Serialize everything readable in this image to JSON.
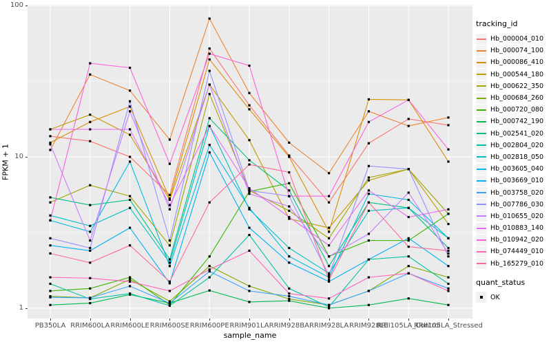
{
  "axes": {
    "x": {
      "title": "sample_name",
      "categories": [
        "PB350LA",
        "RRIM600LA",
        "RRIM600LE",
        "RRIM600SE",
        "RRIM600PE",
        "RRIM901LA",
        "RRIM928BA",
        "RRIM928LA",
        "RRIM928LE",
        "RRII105LA_Control",
        "RRII105LA_Stressed"
      ]
    },
    "y": {
      "title": "FPKM + 1",
      "scale": "log10",
      "ticks": [
        {
          "label": "1",
          "value": 1
        },
        {
          "label": "10",
          "value": 10
        },
        {
          "label": "100",
          "value": 100
        }
      ]
    }
  },
  "legend": {
    "tracking_title": "tracking_id",
    "quant_title": "quant_status",
    "quant_ok_label": "OK"
  },
  "style": {
    "panel_bg": "#EBEBEB",
    "grid_color": "#FFFFFF",
    "point_color": "#000000",
    "tick_text_color": "#4D4D4D"
  },
  "chart_data": {
    "type": "line",
    "title": "",
    "xlabel": "sample_name",
    "ylabel": "FPKM + 1",
    "yscale": "log",
    "ylim": [
      1,
      100
    ],
    "grid": true,
    "legend_position": "right",
    "marker": "black-square",
    "categories": [
      "PB350LA",
      "RRIM600LA",
      "RRIM600LE",
      "RRIM600SE",
      "RRIM600PE",
      "RRIM901LA",
      "RRIM928BA",
      "RRIM928LA",
      "RRIM928LE",
      "RRII105LA_Control",
      "RRII105LA_Stressed"
    ],
    "series": [
      {
        "name": "Hb_000004_010",
        "color": "#F8766D",
        "values": [
          13.7,
          12.7,
          10.0,
          5.6,
          52,
          21.9,
          10.2,
          5.0,
          12.3,
          17.8,
          16.2
        ]
      },
      {
        "name": "Hb_000074_100",
        "color": "#EA8331",
        "values": [
          11.1,
          35,
          27.4,
          13,
          82,
          26.4,
          12.4,
          7.8,
          20,
          16,
          18.2
        ]
      },
      {
        "name": "Hb_000086_410",
        "color": "#D89000",
        "values": [
          12.4,
          17,
          21.5,
          5.3,
          44,
          20.6,
          10.0,
          3.2,
          24,
          23.8,
          9.3
        ]
      },
      {
        "name": "Hb_000544_180",
        "color": "#C09B00",
        "values": [
          15.2,
          19,
          14,
          5.2,
          30,
          12.9,
          3.9,
          3.4,
          7.0,
          8.3,
          3.6
        ]
      },
      {
        "name": "Hb_000622_350",
        "color": "#A3A500",
        "values": [
          5.0,
          6.5,
          5.5,
          2.6,
          26,
          6.0,
          4.4,
          2.9,
          7.3,
          8.3,
          4.2
        ]
      },
      {
        "name": "Hb_000684_260",
        "color": "#7CAE00",
        "values": [
          1.2,
          1.17,
          1.55,
          1.11,
          1.9,
          1.4,
          1.15,
          1.05,
          1.3,
          1.9,
          1.6
        ]
      },
      {
        "name": "Hb_000720_080",
        "color": "#39B600",
        "values": [
          1.3,
          1.35,
          1.6,
          1.05,
          2.2,
          5.9,
          6.7,
          2.2,
          2.8,
          2.8,
          4.2
        ]
      },
      {
        "name": "Hb_000742_190",
        "color": "#00BB4E",
        "values": [
          1.05,
          1.08,
          1.23,
          1.08,
          1.31,
          1.1,
          1.12,
          1.0,
          1.05,
          1.16,
          1.05
        ]
      },
      {
        "name": "Hb_002541_020",
        "color": "#00BF7D",
        "values": [
          5.4,
          4.8,
          5.2,
          2.1,
          18,
          9.5,
          6.0,
          1.9,
          5.0,
          4.6,
          2.5
        ]
      },
      {
        "name": "Hb_002804_020",
        "color": "#00C1A3",
        "values": [
          1.45,
          1.15,
          1.25,
          1.04,
          1.6,
          3.05,
          1.35,
          1.02,
          2.1,
          2.2,
          1.45
        ]
      },
      {
        "name": "Hb_002818_050",
        "color": "#00BFC4",
        "values": [
          4.1,
          3.5,
          4.6,
          2.0,
          16,
          4.5,
          2.5,
          1.7,
          4.4,
          4.6,
          2.9
        ]
      },
      {
        "name": "Hb_003605_040",
        "color": "#00BAE0",
        "values": [
          3.8,
          3.2,
          9.3,
          1.9,
          12,
          4.6,
          2.2,
          1.6,
          5.7,
          5.2,
          2.9
        ]
      },
      {
        "name": "Hb_003669_010",
        "color": "#00B0F6",
        "values": [
          2.6,
          2.4,
          3.4,
          1.46,
          10.7,
          3.4,
          2.0,
          1.5,
          2.1,
          2.9,
          1.9
        ]
      },
      {
        "name": "Hb_003758_020",
        "color": "#35A2FF",
        "values": [
          1.18,
          1.17,
          1.4,
          1.08,
          1.75,
          1.3,
          1.2,
          1.05,
          1.3,
          1.7,
          1.35
        ]
      },
      {
        "name": "Hb_007786_030",
        "color": "#9590FF",
        "values": [
          2.9,
          2.5,
          23.3,
          2.8,
          37,
          6.0,
          5.5,
          1.65,
          8.7,
          8.3,
          2.2
        ]
      },
      {
        "name": "Hb_010655_020",
        "color": "#C77CFF",
        "values": [
          12.1,
          2.8,
          20,
          4.5,
          30,
          5.7,
          4.7,
          2.2,
          3.1,
          5.8,
          2.3
        ]
      },
      {
        "name": "Hb_010883_140",
        "color": "#E76BF3",
        "values": [
          15.2,
          15.2,
          15.2,
          4.8,
          16,
          6.2,
          4.0,
          2.6,
          6.0,
          4.0,
          4.5
        ]
      },
      {
        "name": "Hb_010942_020",
        "color": "#FA62DB",
        "values": [
          3.8,
          41.5,
          38.8,
          9.0,
          48,
          40,
          5.5,
          5.5,
          17,
          23.8,
          11.2
        ]
      },
      {
        "name": "Hb_074449_010",
        "color": "#FF62BC",
        "values": [
          1.6,
          1.58,
          1.5,
          1.3,
          1.8,
          2.4,
          1.25,
          1.16,
          1.6,
          1.7,
          1.3
        ]
      },
      {
        "name": "Hb_165279_010",
        "color": "#FF6A98",
        "values": [
          2.3,
          2.0,
          2.6,
          1.5,
          5.0,
          8.9,
          7.9,
          1.54,
          5.0,
          2.55,
          2.4
        ]
      }
    ]
  }
}
